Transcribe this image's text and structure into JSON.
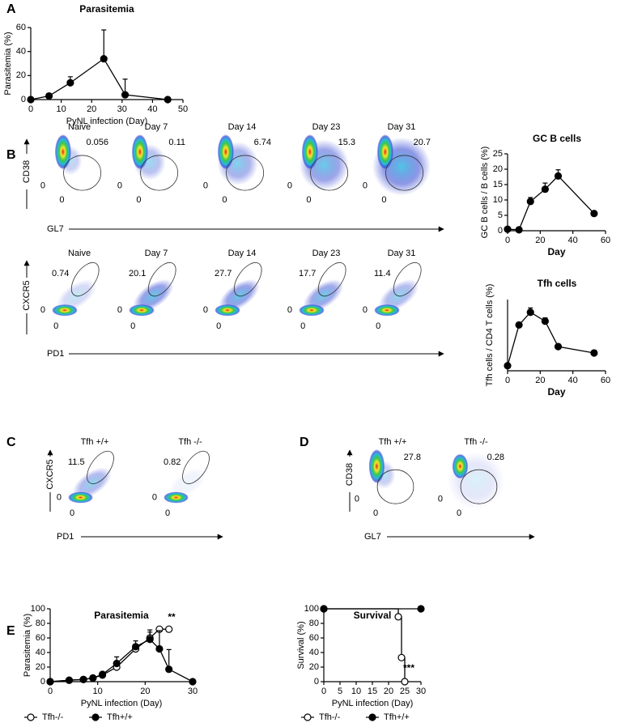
{
  "panel_letters": [
    "A",
    "B",
    "C",
    "D",
    "E"
  ],
  "chart_data": [
    {
      "type": "line",
      "title": "Parasitemia",
      "x_label": "PyNL infection (Day)",
      "y_label": "Parasitemia (%)",
      "x": [
        0,
        6,
        13,
        24,
        31,
        45
      ],
      "values": [
        0,
        3,
        14,
        34,
        4,
        0
      ],
      "errors": [
        0,
        0,
        5,
        24,
        13,
        0
      ],
      "color": "#000000",
      "marker": "filled",
      "xlim": [
        0,
        50
      ],
      "xticks": [
        0,
        10,
        20,
        30,
        40,
        50
      ],
      "ylim": [
        0,
        60
      ],
      "yticks": [
        0,
        20,
        40,
        60
      ]
    },
    {
      "type": "line",
      "title": "GC B cells",
      "x_label": "Day",
      "y_label": "GC B cells / B cells (%)",
      "x": [
        0,
        7,
        14,
        23,
        31,
        53
      ],
      "values": [
        0.5,
        0.3,
        9.5,
        13.5,
        17.8,
        5.6
      ],
      "errors": [
        0.3,
        0,
        1.3,
        2,
        2,
        0
      ],
      "color": "#000000",
      "marker": "filled",
      "xlim": [
        0,
        60
      ],
      "xticks": [
        0,
        20,
        40,
        60
      ],
      "ylim": [
        0,
        25
      ],
      "yticks": [
        0,
        5,
        10,
        15,
        20,
        25
      ]
    },
    {
      "type": "line",
      "title": "Tfh cells",
      "x_label": "Day",
      "y_label": "Tfh cells / CD4 T cells (%)",
      "x": [
        0,
        7,
        14,
        23,
        31,
        53
      ],
      "values": [
        2,
        18,
        23,
        19.5,
        9.5,
        7
      ],
      "errors": [
        0,
        0,
        1.7,
        1.3,
        1,
        1
      ],
      "color": "#000000",
      "marker": "filled",
      "xlim": [
        0,
        60
      ],
      "xticks": [
        0,
        20,
        40,
        60
      ],
      "ylim": [
        0,
        28
      ]
    },
    {
      "type": "line",
      "title": "Parasitemia",
      "x_label": "PyNL infection (Day)",
      "y_label": "Parasitemia (%)",
      "series": [
        {
          "name": "Tfh-/-",
          "color": "#000000",
          "marker": "open",
          "x": [
            0,
            4,
            7,
            9,
            11,
            14,
            18,
            21,
            23,
            25
          ],
          "values": [
            0,
            2,
            3,
            5,
            9,
            20,
            45,
            60,
            72,
            72
          ],
          "errors": [
            0,
            0,
            0,
            1,
            2,
            4,
            5,
            8,
            0,
            0
          ]
        },
        {
          "name": "Tfh+/+",
          "color": "#000000",
          "marker": "filled",
          "x": [
            0,
            4,
            7,
            9,
            11,
            14,
            18,
            21,
            23,
            25,
            30
          ],
          "values": [
            0,
            2,
            3,
            5,
            10,
            25,
            48,
            58,
            45,
            17,
            0
          ],
          "errors": [
            0,
            0,
            0,
            1,
            2,
            9,
            8,
            13,
            25,
            27,
            0
          ]
        }
      ],
      "annotation": "**",
      "xlim": [
        0,
        30
      ],
      "xticks": [
        0,
        10,
        20,
        30
      ],
      "ylim": [
        0,
        100
      ],
      "yticks": [
        0,
        20,
        40,
        60,
        80,
        100
      ]
    },
    {
      "type": "step",
      "title": "Survival",
      "x_label": "PyNL infection (Day)",
      "y_label": "Survival (%)",
      "series": [
        {
          "name": "Tfh-/-",
          "color": "#000000",
          "marker": "open",
          "x": [
            0,
            23,
            24,
            25
          ],
          "values": [
            100,
            89,
            33,
            0
          ]
        },
        {
          "name": "Tfh+/+",
          "color": "#000000",
          "marker": "filled",
          "x": [
            0,
            30
          ],
          "values": [
            100,
            100
          ]
        }
      ],
      "annotation": "***",
      "xlim": [
        0,
        30
      ],
      "xticks": [
        0,
        5,
        10,
        15,
        20,
        25,
        30
      ],
      "ylim": [
        0,
        100
      ],
      "yticks": [
        0,
        20,
        40,
        60,
        80,
        100
      ]
    }
  ],
  "flow": [
    {
      "y_label": "CD38",
      "x_label": "GL7",
      "zero": "0",
      "titles": [
        "Naive",
        "Day 7",
        "Day 14",
        "Day 23",
        "Day 31"
      ],
      "gates": [
        0.056,
        0.11,
        6.74,
        15.3,
        20.7
      ]
    },
    {
      "y_label": "CXCR5",
      "x_label": "PD1",
      "zero": "0",
      "titles": [
        "Naive",
        "Day 7",
        "Day 14",
        "Day 23",
        "Day 31"
      ],
      "gates": [
        0.74,
        20.1,
        27.7,
        17.7,
        11.4
      ]
    },
    {
      "y_label": "CXCR5",
      "x_label": "PD1",
      "zero": "0",
      "titles": [
        "Tfh +/+",
        "Tfh -/-"
      ],
      "gates": [
        11.5,
        0.82
      ]
    },
    {
      "y_label": "CD38",
      "x_label": "GL7",
      "zero": "0",
      "titles": [
        "Tfh +/+",
        "Tfh -/-"
      ],
      "gates": [
        27.8,
        0.28
      ]
    }
  ]
}
